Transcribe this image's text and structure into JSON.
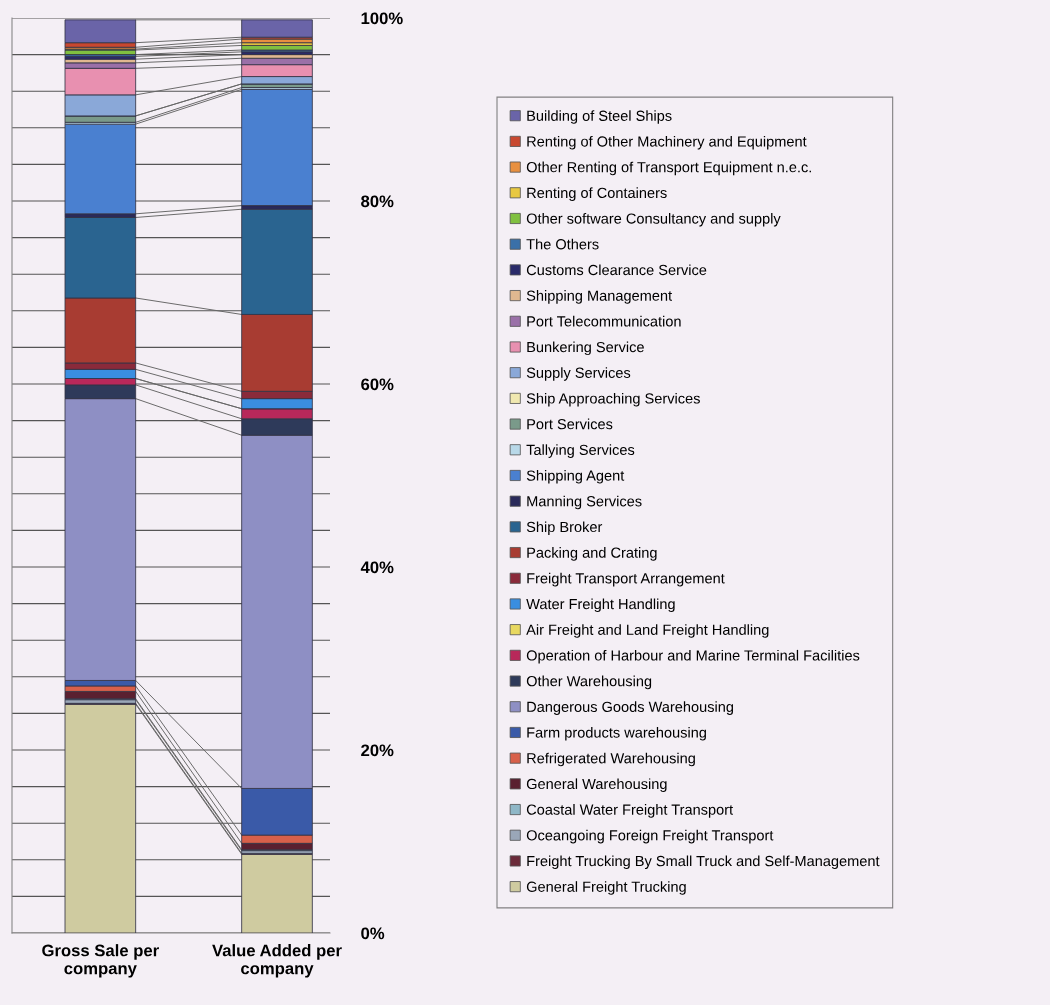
{
  "chart_data": {
    "type": "bar",
    "stacked": true,
    "categories": [
      "Gross Sale per\ncompany",
      "Value Added per\ncompany"
    ],
    "series": [
      {
        "name": "General Freight Trucking",
        "color": "#cfcba0",
        "values": [
          25.0,
          8.6
        ]
      },
      {
        "name": "Freight Trucking By Small Truck and Self-Management",
        "color": "#6b2a3a",
        "values": [
          0.1,
          0.1
        ]
      },
      {
        "name": "Oceangoing Foreign Freight Transport",
        "color": "#9aa7b8",
        "values": [
          0.4,
          0.3
        ]
      },
      {
        "name": "Coastal Water Freight Transport",
        "color": "#8fb7c7",
        "values": [
          0.1,
          0.1
        ]
      },
      {
        "name": "General Warehousing",
        "color": "#5a2030",
        "values": [
          0.8,
          0.7
        ]
      },
      {
        "name": "Refrigerated Warehousing",
        "color": "#d8604a",
        "values": [
          0.6,
          0.9
        ]
      },
      {
        "name": "Farm products warehousing",
        "color": "#3a5aa8",
        "values": [
          0.6,
          5.1
        ]
      },
      {
        "name": "Dangerous Goods Warehousing",
        "color": "#8e8fc4",
        "values": [
          30.8,
          38.6
        ]
      },
      {
        "name": "Other Warehousing",
        "color": "#2e3a5a",
        "values": [
          1.5,
          1.8
        ]
      },
      {
        "name": "Operation of Harbour and Marine Terminal Facilities",
        "color": "#b8285a",
        "values": [
          0.7,
          1.1
        ]
      },
      {
        "name": "Air Freight and Land Freight Handling",
        "color": "#e8d860",
        "values": [
          null,
          null
        ]
      },
      {
        "name": "Water Freight Handling",
        "color": "#3a8ee0",
        "values": [
          1.0,
          1.1
        ]
      },
      {
        "name": "Freight Transport Arrangement",
        "color": "#8a2a3a",
        "values": [
          0.7,
          0.8
        ]
      },
      {
        "name": "Packing and Crating",
        "color": "#a83c32",
        "values": [
          7.1,
          8.4
        ]
      },
      {
        "name": "Ship Broker",
        "color": "#2a6490",
        "values": [
          8.8,
          11.5
        ]
      },
      {
        "name": "Manning Services",
        "color": "#2a2a5a",
        "values": [
          0.4,
          0.4
        ]
      },
      {
        "name": "Shipping Agent",
        "color": "#4a80d0",
        "values": [
          9.8,
          12.7
        ]
      },
      {
        "name": "Tallying Services",
        "color": "#b8d8e8",
        "values": [
          0.2,
          0.2
        ]
      },
      {
        "name": "Port Services",
        "color": "#7a9a8a",
        "values": [
          0.7,
          0.4
        ]
      },
      {
        "name": "Ship Approaching Services",
        "color": "#f0e8b0",
        "values": [
          null,
          null
        ]
      },
      {
        "name": "Supply Services",
        "color": "#8aa8d8",
        "values": [
          2.3,
          0.8
        ]
      },
      {
        "name": "Bunkering Service",
        "color": "#e890b0",
        "values": [
          2.9,
          1.3
        ]
      },
      {
        "name": "Port Telecommunication",
        "color": "#9a70a8",
        "values": [
          0.6,
          0.7
        ]
      },
      {
        "name": "Shipping Management",
        "color": "#e0b890",
        "values": [
          0.4,
          0.4
        ]
      },
      {
        "name": "Customs Clearance Service",
        "color": "#2a2a6a",
        "values": [
          0.3,
          0.3
        ]
      },
      {
        "name": "The Others",
        "color": "#3a70a8",
        "values": [
          0.2,
          0.2
        ]
      },
      {
        "name": "Other software Consultancy and supply",
        "color": "#80c040",
        "values": [
          0.5,
          0.5
        ]
      },
      {
        "name": "Renting of Containers",
        "color": "#e8c840",
        "values": [
          0.1,
          0.3
        ]
      },
      {
        "name": "Other Renting of Transport Equipment n.e.c.",
        "color": "#e89040",
        "values": [
          0.2,
          0.4
        ]
      },
      {
        "name": "Renting of Other Machinery and Equipment",
        "color": "#c84830",
        "values": [
          0.5,
          0.2
        ]
      },
      {
        "name": "Building of Steel Ships",
        "color": "#6a64a8",
        "values": [
          2.5,
          1.9
        ]
      }
    ],
    "ylim": [
      0,
      100
    ],
    "yticks": [
      {
        "value": 0,
        "label": "0%"
      },
      {
        "value": 4,
        "label": null
      },
      {
        "value": 8,
        "label": null
      },
      {
        "value": 12,
        "label": null
      },
      {
        "value": 16,
        "label": null
      },
      {
        "value": 20,
        "label": "20%"
      },
      {
        "value": 24,
        "label": null
      },
      {
        "value": 28,
        "label": null
      },
      {
        "value": 32,
        "label": null
      },
      {
        "value": 36,
        "label": null
      },
      {
        "value": 40,
        "label": "40%"
      },
      {
        "value": 44,
        "label": null
      },
      {
        "value": 48,
        "label": null
      },
      {
        "value": 52,
        "label": null
      },
      {
        "value": 56,
        "label": null
      },
      {
        "value": 60,
        "label": "60%"
      },
      {
        "value": 64,
        "label": null
      },
      {
        "value": 68,
        "label": null
      },
      {
        "value": 72,
        "label": null
      },
      {
        "value": 76,
        "label": null
      },
      {
        "value": 80,
        "label": "80%"
      },
      {
        "value": 84,
        "label": null
      },
      {
        "value": 88,
        "label": null
      },
      {
        "value": 92,
        "label": null
      },
      {
        "value": 96,
        "label": null
      },
      {
        "value": 100,
        "label": "100%"
      }
    ],
    "grid": "y",
    "legend": "right"
  }
}
